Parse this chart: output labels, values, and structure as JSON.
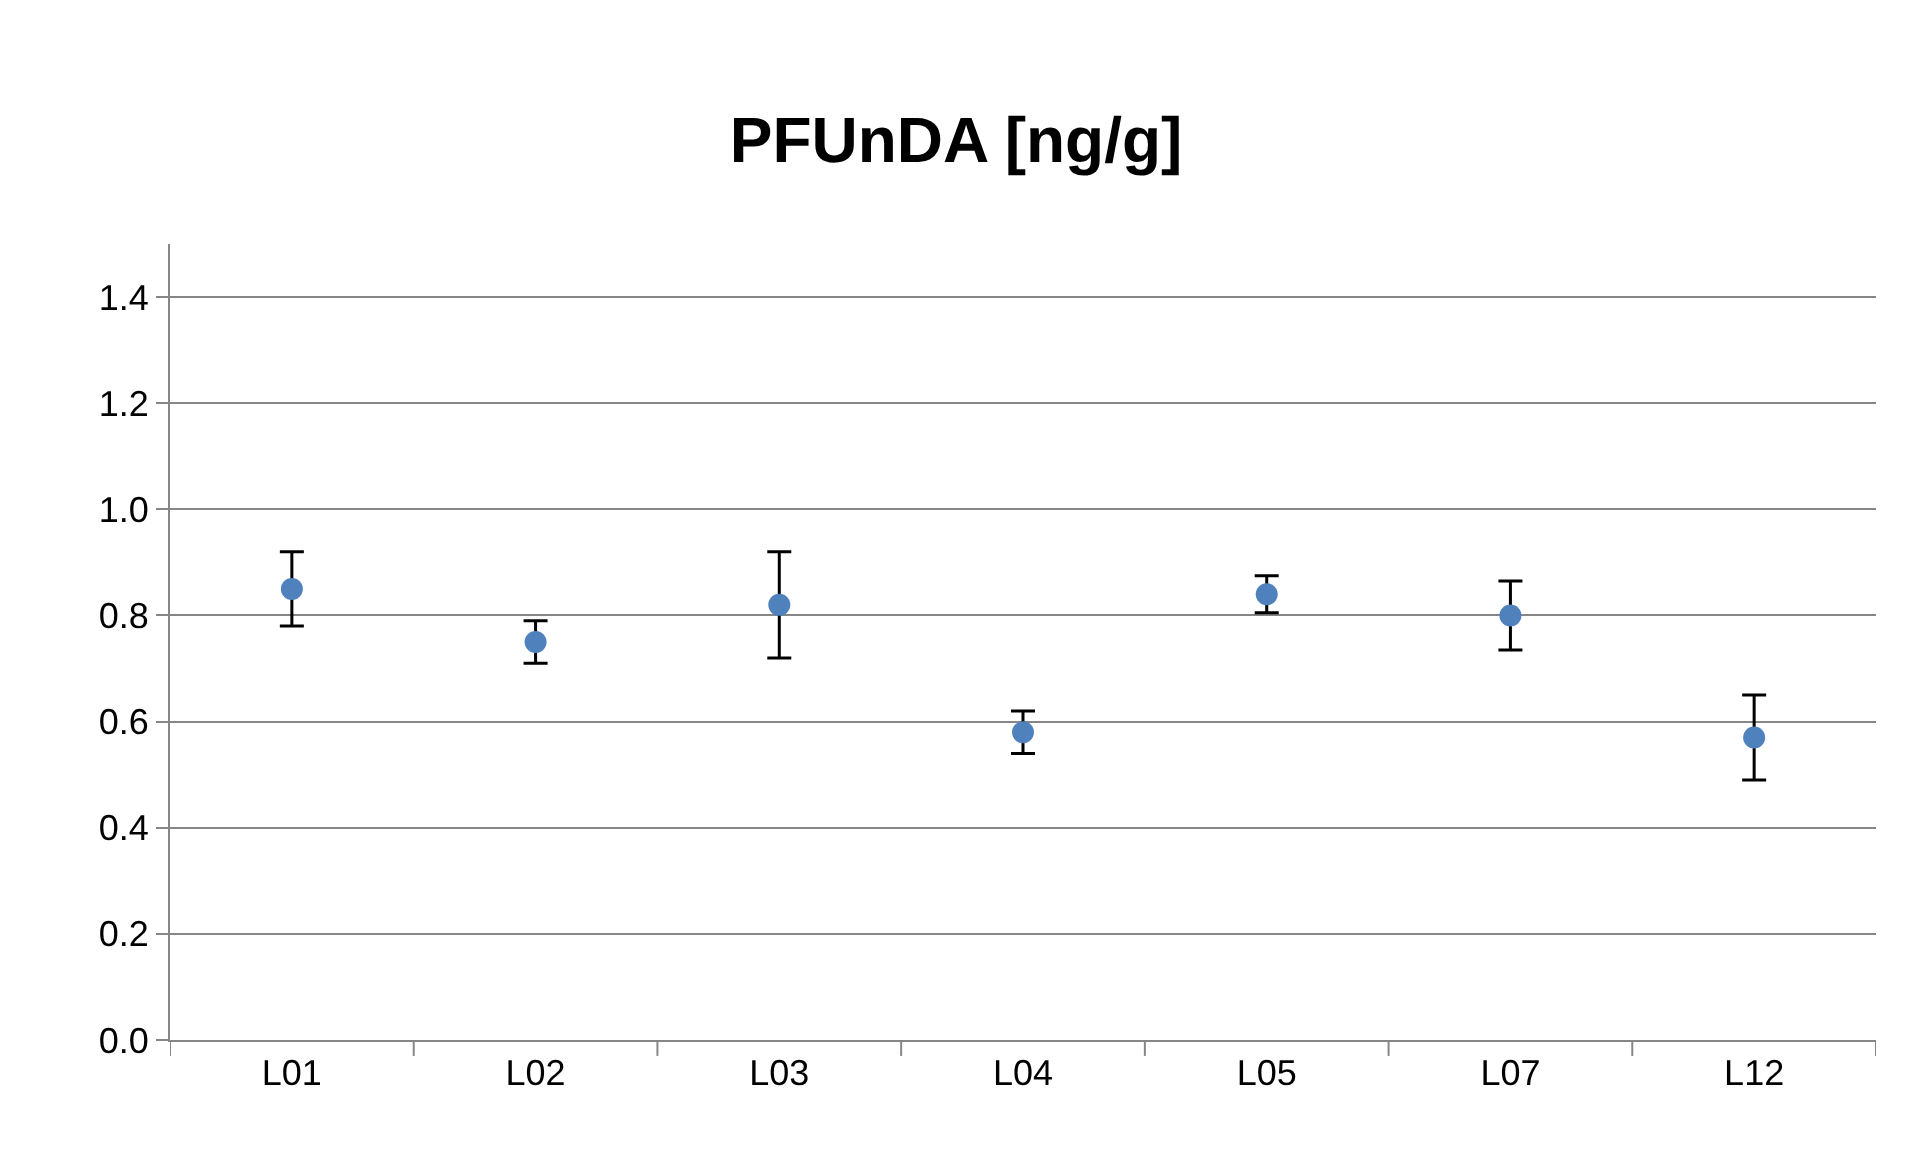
{
  "chart_data": {
    "type": "scatter",
    "title": "PFUnDA [ng/g]",
    "categories": [
      "L01",
      "L02",
      "L03",
      "L04",
      "L05",
      "L07",
      "L12"
    ],
    "series": [
      {
        "color": "#4f81bd",
        "values": [
          0.85,
          0.75,
          0.82,
          0.58,
          0.84,
          0.8,
          0.57
        ],
        "errors": [
          0.07,
          0.04,
          0.1,
          0.04,
          0.035,
          0.065,
          0.08
        ]
      }
    ],
    "ylim": [
      0,
      1.5
    ],
    "yticks": [
      {
        "value": 0,
        "label": "0.0"
      },
      0.2,
      0.4,
      0.6,
      0.8,
      {
        "value": 1,
        "label": "1.0"
      },
      1.2,
      1.4
    ],
    "grid": "y",
    "marker": "circle"
  }
}
